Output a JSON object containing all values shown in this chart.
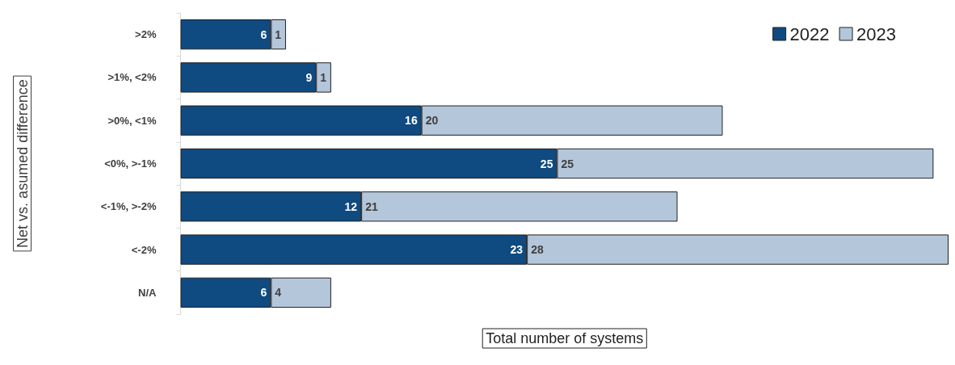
{
  "chart_data": {
    "type": "bar",
    "orientation": "horizontal",
    "stacked": true,
    "data_labels": true,
    "legend": "top right",
    "xlabel": "Total number of systems",
    "ylabel": "Net vs. asumed difference",
    "categories": [
      ">2%",
      ">1%, <2%",
      ">0%, <1%",
      "<0%, >-1%",
      "<-1%, >-2%",
      "<-2%",
      "N/A"
    ],
    "series": [
      {
        "name": "2022",
        "color": "#0f4a80",
        "values": [
          6,
          9,
          16,
          25,
          12,
          23,
          6
        ]
      },
      {
        "name": "2023",
        "color": "#b4c6da",
        "values": [
          1,
          1,
          20,
          25,
          21,
          28,
          4
        ]
      }
    ]
  }
}
